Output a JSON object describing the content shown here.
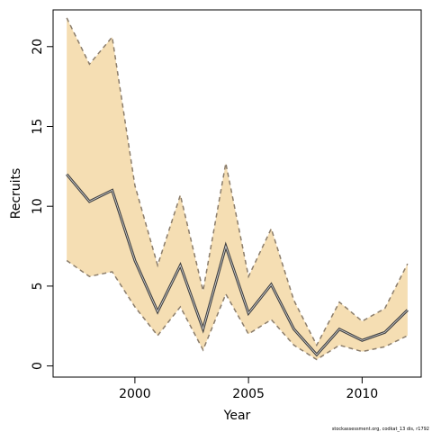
{
  "chart_data": {
    "type": "area",
    "xlabel": "Year",
    "ylabel": "Recruits",
    "xlim": [
      1996.4,
      2012.6
    ],
    "ylim": [
      -0.7,
      22.3
    ],
    "x_ticks": [
      2000,
      2005,
      2010
    ],
    "y_ticks": [
      0,
      5,
      10,
      15,
      20
    ],
    "grid": false,
    "colors": {
      "band_fill": "#f5deb3",
      "bound_line": "#8b7d6b",
      "estimate_line": "#404040"
    },
    "x": [
      1997,
      1998,
      1999,
      2000,
      2001,
      2002,
      2003,
      2004,
      2005,
      2006,
      2007,
      2008,
      2009,
      2010,
      2011,
      2012
    ],
    "estimate": [
      12.0,
      10.3,
      11.0,
      6.6,
      3.4,
      6.3,
      2.3,
      7.5,
      3.3,
      5.1,
      2.3,
      0.7,
      2.3,
      1.6,
      2.1,
      3.5
    ],
    "upper": [
      21.8,
      18.9,
      20.6,
      11.3,
      6.3,
      10.7,
      4.7,
      12.7,
      5.6,
      8.6,
      4.1,
      1.3,
      4.0,
      2.8,
      3.6,
      6.4
    ],
    "lower": [
      6.6,
      5.6,
      5.9,
      3.7,
      1.9,
      3.7,
      1.0,
      4.5,
      2.0,
      2.9,
      1.3,
      0.4,
      1.3,
      0.9,
      1.2,
      1.9
    ]
  },
  "credit": "stockassessment.org, codkat_13 dis, r1792"
}
